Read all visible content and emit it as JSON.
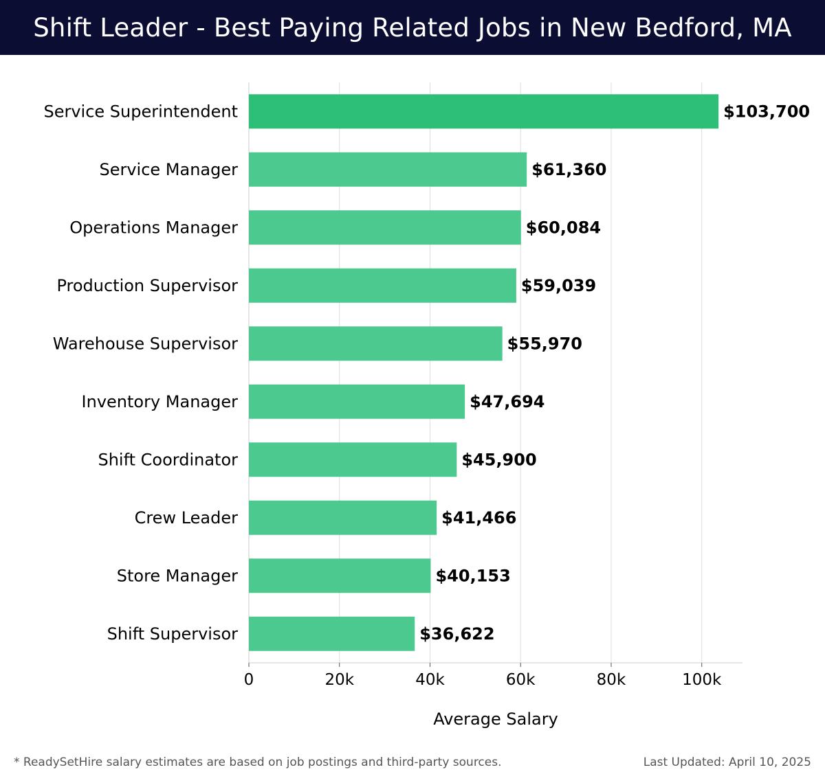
{
  "header": {
    "title": "Shift Leader - Best Paying Related Jobs in New Bedford, MA"
  },
  "chart_data": {
    "type": "bar",
    "orientation": "horizontal",
    "categories": [
      "Service Superintendent",
      "Service Manager",
      "Operations Manager",
      "Production Supervisor",
      "Warehouse Supervisor",
      "Inventory Manager",
      "Shift Coordinator",
      "Crew Leader",
      "Store Manager",
      "Shift Supervisor"
    ],
    "values": [
      103700,
      61360,
      60084,
      59039,
      55970,
      47694,
      45900,
      41466,
      40153,
      36622
    ],
    "value_labels": [
      "$103,700",
      "$61,360",
      "$60,084",
      "$59,039",
      "$55,970",
      "$47,694",
      "$45,900",
      "$41,466",
      "$40,153",
      "$36,622"
    ],
    "xlabel": "Average Salary",
    "ylabel": "",
    "xlim": [
      0,
      109000
    ],
    "xticks": [
      0,
      20000,
      40000,
      60000,
      80000,
      100000
    ],
    "xtick_labels": [
      "0",
      "20k",
      "40k",
      "60k",
      "80k",
      "100k"
    ],
    "grid": true,
    "colors": {
      "top_bar": "#2dbf78",
      "bars": "#4cc98e",
      "grid": "#dddddd",
      "axis": "#cccccc",
      "text": "#000000"
    }
  },
  "footer": {
    "note": "* ReadySetHire salary estimates are based on job postings and third-party sources.",
    "updated": "Last Updated: April 10, 2025"
  }
}
